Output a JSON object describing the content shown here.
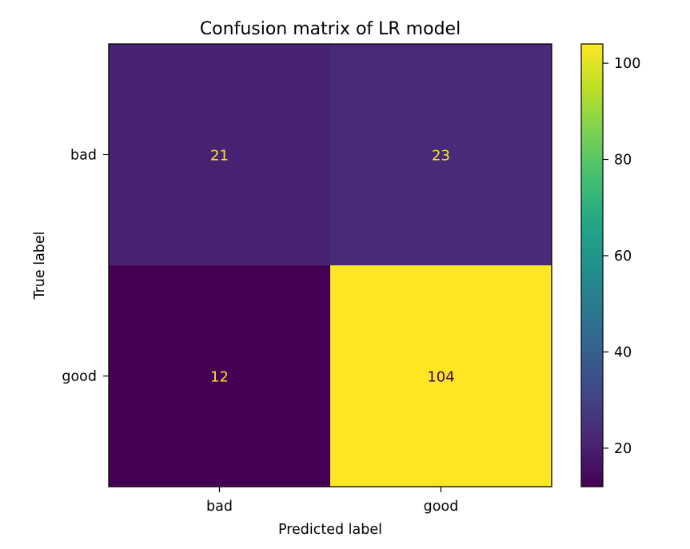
{
  "chart_data": {
    "type": "heatmap",
    "title": "Confusion matrix of LR model",
    "xlabel": "Predicted label",
    "ylabel": "True label",
    "x_categories": [
      "bad",
      "good"
    ],
    "y_categories": [
      "bad",
      "good"
    ],
    "values": [
      [
        21,
        23
      ],
      [
        12,
        104
      ]
    ],
    "cell_labels": [
      [
        "21",
        "23"
      ],
      [
        "12",
        "104"
      ]
    ],
    "colormap": "viridis",
    "color_range": [
      12,
      104
    ],
    "colorbar": {
      "ticks": [
        20,
        40,
        60,
        80,
        100
      ],
      "tick_labels": [
        "20",
        "40",
        "60",
        "80",
        "100"
      ]
    },
    "grid": false,
    "colors": {
      "light_text": "#fde725",
      "dark_text": "#440154"
    }
  }
}
